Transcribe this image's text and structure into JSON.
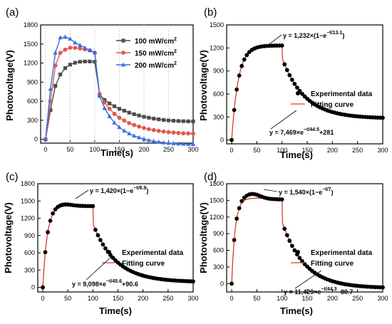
{
  "chart_data": [
    {
      "panel": "(a)",
      "type": "line",
      "xlabel": "Time(s)",
      "ylabel": "Photovoltage(V)",
      "xlim": [
        -10,
        300
      ],
      "ylim": [
        -60,
        1800
      ],
      "xticks": [
        0,
        50,
        100,
        150,
        200,
        250,
        300
      ],
      "yticks": [
        0,
        300,
        600,
        900,
        1200,
        1500,
        1800
      ],
      "legend_position": "top-right",
      "x": [
        0,
        10,
        20,
        30,
        40,
        50,
        60,
        70,
        80,
        90,
        100,
        110,
        120,
        130,
        140,
        150,
        160,
        170,
        180,
        190,
        200,
        210,
        220,
        230,
        240,
        250,
        260,
        270,
        280,
        290,
        300
      ],
      "series": [
        {
          "name": "100 mW/cm²",
          "color": "#4d4d4d",
          "marker": "square",
          "values": [
            0,
            460,
            840,
            1020,
            1120,
            1175,
            1205,
            1220,
            1225,
            1225,
            1220,
            700,
            620,
            565,
            520,
            480,
            450,
            420,
            395,
            375,
            355,
            340,
            325,
            315,
            305,
            298,
            292,
            288,
            285,
            283,
            282
          ]
        },
        {
          "name": "150 mW/cm²",
          "color": "#e05a4a",
          "marker": "circle",
          "values": [
            0,
            600,
            1160,
            1360,
            1410,
            1440,
            1440,
            1430,
            1415,
            1400,
            1360,
            710,
            580,
            480,
            400,
            340,
            295,
            255,
            225,
            200,
            178,
            160,
            145,
            133,
            122,
            113,
            106,
            100,
            95,
            92,
            90
          ]
        },
        {
          "name": "200 mW/cm²",
          "color": "#3a6fe0",
          "marker": "triangle",
          "values": [
            0,
            790,
            1360,
            1600,
            1610,
            1580,
            1520,
            1480,
            1440,
            1400,
            1370,
            680,
            490,
            360,
            260,
            190,
            135,
            90,
            55,
            28,
            5,
            -15,
            -30,
            -42,
            -52,
            -60,
            -65,
            -70,
            -73,
            -76,
            -78
          ]
        }
      ]
    },
    {
      "panel": "(b)",
      "type": "scatter",
      "xlabel": "Time(s)",
      "ylabel": "Photovoltage(V)",
      "xlim": [
        -10,
        300
      ],
      "ylim": [
        -50,
        1500
      ],
      "xticks": [
        0,
        50,
        100,
        150,
        200,
        250,
        300
      ],
      "yticks": [
        0,
        300,
        600,
        900,
        1200,
        1500
      ],
      "legend_position": "right",
      "legend": {
        "data": "Experimental data",
        "fit": "Fitting curve"
      },
      "fit": {
        "rise": {
          "A": 1232,
          "tau": 13.1
        },
        "decay": {
          "A": 7469,
          "tau": 44.5,
          "c": 281
        }
      },
      "eq_rise": {
        "pre": "y = 1,232×(1−e",
        "sup": "−t/13.1",
        "post": ")"
      },
      "eq_decay": {
        "pre": "y = 7,469×e",
        "sup": "−t/44.5",
        "post": "+281"
      }
    },
    {
      "panel": "(c)",
      "type": "scatter",
      "xlabel": "Time(s)",
      "ylabel": "Photovoltage(V)",
      "xlim": [
        -10,
        300
      ],
      "ylim": [
        -80,
        1800
      ],
      "xticks": [
        0,
        50,
        100,
        150,
        200,
        250,
        300
      ],
      "yticks": [
        0,
        300,
        600,
        900,
        1200,
        1500,
        1800
      ],
      "legend_position": "right",
      "legend": {
        "data": "Experimental data",
        "fit": "Fitting curve"
      },
      "fit": {
        "rise": {
          "A": 1420,
          "tau": 8.9
        },
        "decay": {
          "A": 9098,
          "tau": 45.6,
          "c": 90.6
        }
      },
      "eq_rise": {
        "pre": "y = 1,420×(1−e",
        "sup": "−t/8.9",
        "post": ")"
      },
      "eq_decay": {
        "pre": "y = 9,098×e",
        "sup": "−t/45.6",
        "post": "+90.6"
      }
    },
    {
      "panel": "(d)",
      "type": "scatter",
      "xlabel": "Time(s)",
      "ylabel": "Photovoltage(V)",
      "xlim": [
        -10,
        300
      ],
      "ylim": [
        -150,
        1800
      ],
      "xticks": [
        0,
        50,
        100,
        150,
        200,
        250,
        300
      ],
      "yticks": [
        0,
        300,
        600,
        900,
        1200,
        1500,
        1800
      ],
      "legend_position": "right",
      "legend": {
        "data": "Experimental data",
        "fit": "Fitting curve"
      },
      "fit": {
        "rise": {
          "A": 1540,
          "tau": 7
        },
        "decay": {
          "A": 11429,
          "tau": 44.3,
          "c": -80.7
        }
      },
      "eq_rise": {
        "pre": "y = 1,540×(1−e",
        "sup": "−t/7",
        "post": ")"
      },
      "eq_decay": {
        "pre": "y = 11,429×e",
        "sup": "−t/44.3",
        "post": "−80.7"
      }
    }
  ],
  "fit_color": "#d93a2b",
  "point_color": "#000000"
}
